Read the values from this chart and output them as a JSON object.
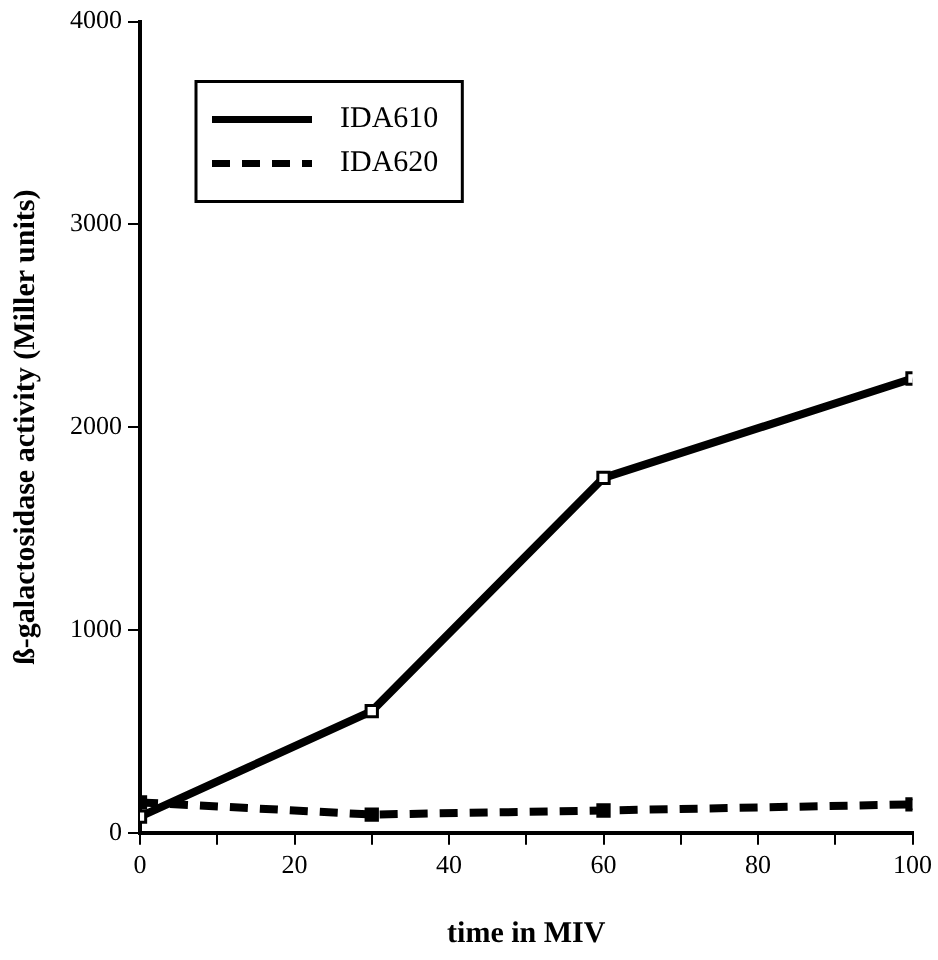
{
  "chart_data": {
    "type": "line",
    "xlabel": "time in MIV",
    "ylabel": "ß-galactosidase activity (Miller units)",
    "x": [
      0,
      30,
      60,
      100
    ],
    "xlim": [
      0,
      100
    ],
    "xticks": [
      0,
      {
        "value": 10,
        "label": null
      },
      20,
      {
        "value": 30,
        "label": null
      },
      40,
      {
        "value": 50,
        "label": null
      },
      60,
      {
        "value": 70,
        "label": null
      },
      80,
      {
        "value": 90,
        "label": null
      },
      100
    ],
    "ylim": [
      0,
      4000
    ],
    "yticks": [
      0,
      1000,
      2000,
      3000,
      4000
    ],
    "grid": false,
    "legend": "top left",
    "marker": "square",
    "series": [
      {
        "name": "IDA610",
        "color": "#000000",
        "values": [
          80,
          600,
          1750,
          2240
        ],
        "line_style": "solid"
      },
      {
        "name": "IDA620",
        "color": "#000000",
        "values": [
          150,
          90,
          110,
          140
        ],
        "line_style": "dashed"
      }
    ]
  }
}
